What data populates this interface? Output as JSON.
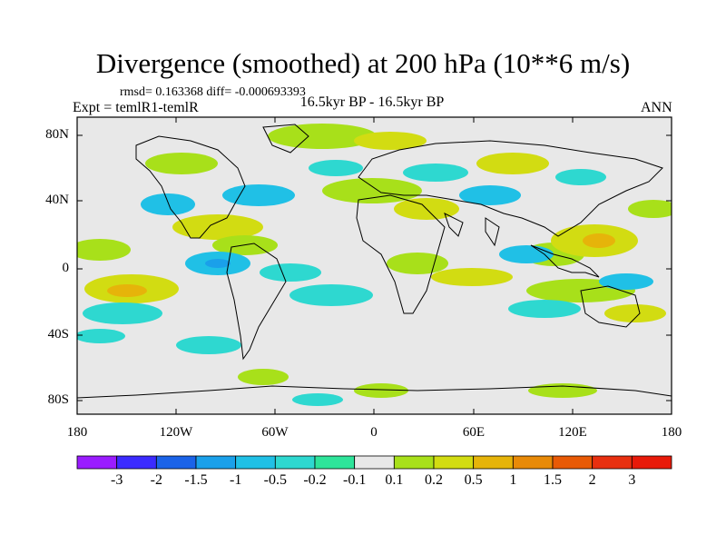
{
  "title": "Divergence (smoothed) at 200 hPa (10**6 m/s)",
  "stats": "rmsd= 0.163368 diff= -0.000693393",
  "experiment": "Expt = temlR1-temlR",
  "period": "16.5kyr BP - 16.5kyr BP",
  "season": "ANN",
  "lat_labels": [
    "80N",
    "40N",
    "0",
    "40S",
    "80S"
  ],
  "lon_labels": [
    "180",
    "120W",
    "60W",
    "0",
    "60E",
    "120E",
    "180"
  ],
  "colorbar": {
    "labels": [
      "-3",
      "-2",
      "-1.5",
      "-1",
      "-0.5",
      "-0.2",
      "-0.1",
      "0.1",
      "0.2",
      "0.5",
      "1",
      "1.5",
      "2",
      "3"
    ],
    "colors": [
      "#9a1cff",
      "#3b2bff",
      "#1b63e8",
      "#1aa0ea",
      "#20c0e6",
      "#2ed8d0",
      "#2ee49a",
      "#e8e8e8",
      "#a8e01a",
      "#d2dc12",
      "#e6b40a",
      "#e88a08",
      "#e85a06",
      "#e83010",
      "#e81a0a"
    ]
  }
}
